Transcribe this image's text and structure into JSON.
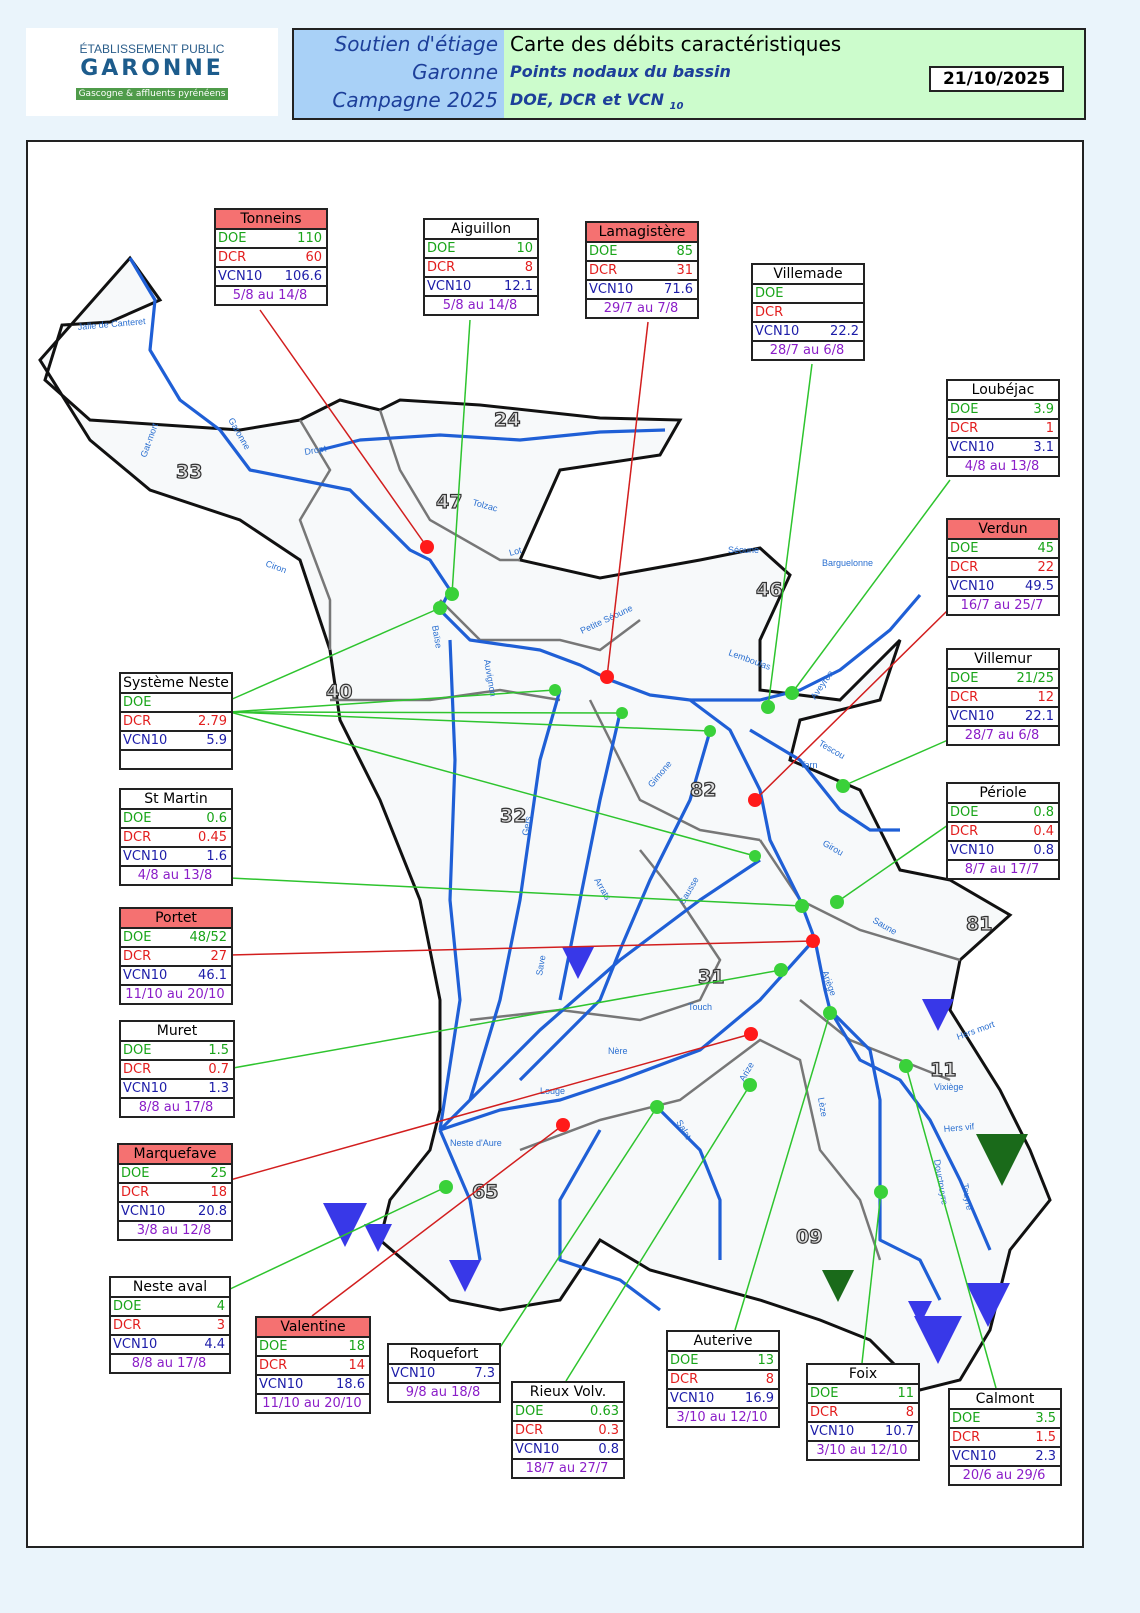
{
  "logo": {
    "line1": "ÉTABLISSEMENT PUBLIC",
    "line2": "GARONNE",
    "line3": "Gascogne & affluents pyrénéens"
  },
  "header": {
    "left": [
      "Soutien d'étiage",
      "Garonne",
      "Campagne 2025"
    ],
    "title": "Carte des débits caractéristiques",
    "subtitle": "Points nodaux du bassin",
    "subtitle2": "DOE, DCR et VCN",
    "subscript": "10",
    "date": "21/10/2025"
  },
  "colors": {
    "doe": "#18a418",
    "dcr": "#e21e1e",
    "vcn": "#1c1ca8",
    "period": "#8b1ec8",
    "alert_header": "#f57171",
    "river": "#1f5fd6",
    "green_dot": "#3ad13a",
    "red_dot": "#ff1a1a"
  },
  "labels": {
    "doe": "DOE",
    "dcr": "DCR",
    "vcn": "VCN10",
    "vcn_alt": "VCN10"
  },
  "departments": [
    "33",
    "24",
    "47",
    "46",
    "40",
    "82",
    "32",
    "81",
    "31",
    "11",
    "65",
    "09"
  ],
  "rivers": [
    "Jalle de Canteret",
    "Garonne",
    "Gat-mort",
    "Ciron",
    "Dropt",
    "Lot",
    "Tolzac",
    "Séoune",
    "Barguelonne",
    "Petite Séoune",
    "Lemboulas",
    "Aveyron",
    "Tescou",
    "Tarn",
    "Girou",
    "Sausse",
    "Baïse",
    "Auvignon",
    "Gers",
    "Arrats",
    "Gimone",
    "Save",
    "Touch",
    "Louge",
    "Nère",
    "Ariège",
    "Hers vif",
    "Lèze",
    "Arize",
    "Salat",
    "Neste d'Aure",
    "Vixiège",
    "Douctouyre",
    "Touyre",
    "Hers mort",
    "Saune"
  ],
  "stations": [
    {
      "name": "Tonneins",
      "alert": true,
      "doe": "110",
      "dcr": "60",
      "vcn": "106.6",
      "period": "5/8 au 14/8"
    },
    {
      "name": "Aiguillon",
      "alert": false,
      "doe": "10",
      "dcr": "8",
      "vcn": "12.1",
      "period": "5/8 au 14/8"
    },
    {
      "name": "Lamagistère",
      "alert": true,
      "doe": "85",
      "dcr": "31",
      "vcn": "71.6",
      "period": "29/7 au 7/8"
    },
    {
      "name": "Villemade",
      "alert": false,
      "doe": "",
      "dcr": "",
      "vcn": "22.2",
      "period": "28/7 au 6/8"
    },
    {
      "name": "Loubéjac",
      "alert": false,
      "doe": "3.9",
      "dcr": "1",
      "vcn": "3.1",
      "period": "4/8 au 13/8"
    },
    {
      "name": "Verdun",
      "alert": true,
      "doe": "45",
      "dcr": "22",
      "vcn": "49.5",
      "period": "16/7 au 25/7"
    },
    {
      "name": "Villemur",
      "alert": false,
      "doe": "21/25",
      "dcr": "12",
      "vcn": "22.1",
      "period": "28/7 au 6/8"
    },
    {
      "name": "Périole",
      "alert": false,
      "doe": "0.8",
      "dcr": "0.4",
      "vcn": "0.8",
      "period": "8/7 au 17/7"
    },
    {
      "name": "Système Neste",
      "alert": false,
      "doe": "",
      "dcr": "2.79",
      "vcn": "5.9",
      "period": ""
    },
    {
      "name": "St Martin",
      "alert": false,
      "doe": "0.6",
      "dcr": "0.45",
      "vcn": "1.6",
      "period": "4/8 au 13/8"
    },
    {
      "name": "Portet",
      "alert": true,
      "doe": "48/52",
      "dcr": "27",
      "vcn": "46.1",
      "period": "11/10 au 20/10"
    },
    {
      "name": "Muret",
      "alert": false,
      "doe": "1.5",
      "dcr": "0.7",
      "vcn": "1.3",
      "period": "8/8 au 17/8"
    },
    {
      "name": "Marquefave",
      "alert": true,
      "doe": "25",
      "dcr": "18",
      "vcn": "20.8",
      "period": "3/8 au 12/8"
    },
    {
      "name": "Neste aval",
      "alert": false,
      "doe": "4",
      "dcr": "3",
      "vcn": "4.4",
      "period": "8/8 au 17/8"
    },
    {
      "name": "Valentine",
      "alert": true,
      "doe": "18",
      "dcr": "14",
      "vcn": "18.6",
      "period": "11/10 au 20/10"
    },
    {
      "name": "Roquefort",
      "alert": false,
      "vcn": "7.3",
      "period": "9/8 au 18/8"
    },
    {
      "name": "Rieux Volv.",
      "alert": false,
      "doe": "0.63",
      "dcr": "0.3",
      "vcn": "0.8",
      "period": "18/7 au 27/7"
    },
    {
      "name": "Auterive",
      "alert": false,
      "doe": "13",
      "dcr": "8",
      "vcn": "16.9",
      "period": "3/10 au 12/10"
    },
    {
      "name": "Foix",
      "alert": false,
      "doe": "11",
      "dcr": "8",
      "vcn": "10.7",
      "period": "3/10 au 12/10"
    },
    {
      "name": "Calmont",
      "alert": false,
      "doe": "3.5",
      "dcr": "1.5",
      "vcn": "2.3",
      "period": "20/6 au 29/6"
    }
  ]
}
